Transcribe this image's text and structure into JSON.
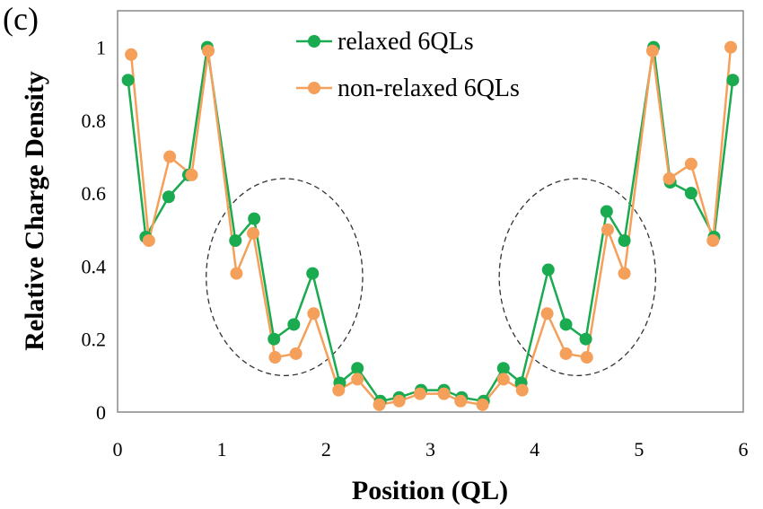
{
  "chart_data": {
    "type": "line",
    "panel_label": "(c)",
    "xlabel": "Position (QL)",
    "ylabel": "Relative Charge  Density",
    "xlim": [
      0,
      6
    ],
    "ylim": [
      0,
      1.1
    ],
    "x_ticks": [
      0,
      1,
      2,
      3,
      4,
      5,
      6
    ],
    "x_tick_labels": [
      "0",
      "1",
      "2",
      "3",
      "4",
      "5",
      "6"
    ],
    "y_ticks": [
      0,
      0.2,
      0.4,
      0.6,
      0.8,
      1
    ],
    "y_tick_labels": [
      "0",
      "0.2",
      "0.4",
      "0.6",
      "0.8",
      "1"
    ],
    "legend_position": "top-center",
    "series": [
      {
        "name": "relaxed 6QLs",
        "color": "#1aaa50",
        "x": [
          0.1,
          0.27,
          0.49,
          0.68,
          0.86,
          1.13,
          1.31,
          1.5,
          1.69,
          1.87,
          2.13,
          2.3,
          2.52,
          2.7,
          2.91,
          3.13,
          3.3,
          3.51,
          3.7,
          3.87,
          4.13,
          4.3,
          4.49,
          4.69,
          4.86,
          5.14,
          5.3,
          5.5,
          5.72,
          5.9
        ],
        "values": [
          0.91,
          0.48,
          0.59,
          0.65,
          1.0,
          0.47,
          0.53,
          0.2,
          0.24,
          0.38,
          0.08,
          0.12,
          0.03,
          0.04,
          0.06,
          0.06,
          0.04,
          0.03,
          0.12,
          0.08,
          0.39,
          0.24,
          0.2,
          0.55,
          0.47,
          1.0,
          0.63,
          0.6,
          0.48,
          0.91
        ]
      },
      {
        "name": "non-relaxed 6QLs",
        "color": "#f5a05a",
        "x": [
          0.13,
          0.3,
          0.5,
          0.71,
          0.87,
          1.14,
          1.3,
          1.51,
          1.71,
          1.88,
          2.12,
          2.3,
          2.51,
          2.7,
          2.9,
          3.13,
          3.29,
          3.5,
          3.7,
          3.88,
          4.12,
          4.3,
          4.5,
          4.7,
          4.86,
          5.13,
          5.29,
          5.5,
          5.71,
          5.88
        ],
        "values": [
          0.98,
          0.47,
          0.7,
          0.65,
          0.99,
          0.38,
          0.49,
          0.15,
          0.16,
          0.27,
          0.06,
          0.09,
          0.02,
          0.03,
          0.05,
          0.05,
          0.03,
          0.02,
          0.09,
          0.06,
          0.27,
          0.16,
          0.15,
          0.5,
          0.38,
          0.99,
          0.64,
          0.68,
          0.47,
          1.0
        ]
      }
    ],
    "annotations": [
      {
        "type": "dashed-ellipse",
        "center": [
          1.6,
          0.37
        ],
        "radius_x": 0.75,
        "radius_y": 0.27
      },
      {
        "type": "dashed-ellipse",
        "center": [
          4.41,
          0.37
        ],
        "radius_x": 0.75,
        "radius_y": 0.27
      }
    ]
  }
}
